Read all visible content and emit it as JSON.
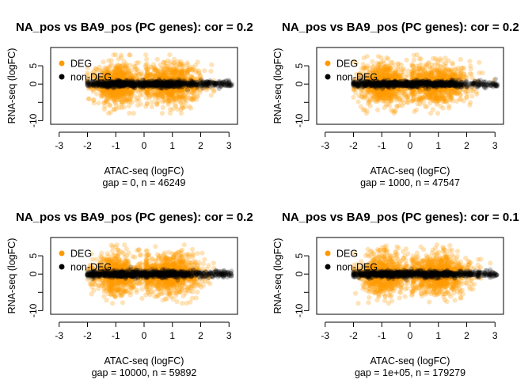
{
  "colors": {
    "deg": "#ff9900",
    "non_deg": "#000000",
    "frame": "#000000",
    "background": "#ffffff"
  },
  "legend": {
    "deg_label": "DEG",
    "non_deg_label": "non-DEG",
    "placement": "top-left"
  },
  "chart_data": [
    {
      "type": "scatter",
      "title": "NA_pos vs BA9_pos (PC genes): cor = 0.2",
      "xlabel": "ATAC-seq (logFC)",
      "ylabel": "RNA-seq (logFC)",
      "subtitle": "gap = 0, n = 46249",
      "xlim": [
        -3.3,
        3.3
      ],
      "ylim": [
        -11,
        10
      ],
      "xticks": [
        "-3",
        "-2",
        "-1",
        "0",
        "1",
        "2",
        "3"
      ],
      "yticks": [
        "-10",
        "",
        "0",
        "5"
      ],
      "series": [
        {
          "name": "DEG",
          "x_range": [
            -1.9,
            3.0
          ],
          "y_range": [
            -8,
            8
          ],
          "x_gap": [
            -0.05,
            0.05
          ]
        },
        {
          "name": "non-DEG",
          "x_range": [
            -2.0,
            3.1
          ],
          "y_range": [
            -1.5,
            1.5
          ]
        }
      ]
    },
    {
      "type": "scatter",
      "title": "NA_pos vs BA9_pos (PC genes): cor = 0.2",
      "xlabel": "ATAC-seq (logFC)",
      "ylabel": "RNA-seq (logFC)",
      "subtitle": "gap = 1000, n = 47547",
      "xlim": [
        -3.3,
        3.3
      ],
      "ylim": [
        -11,
        10
      ],
      "xticks": [
        "-3",
        "-2",
        "-1",
        "0",
        "1",
        "2",
        "3"
      ],
      "yticks": [
        "-10",
        "",
        "0",
        "5"
      ],
      "series": [
        {
          "name": "DEG",
          "x_range": [
            -1.9,
            3.0
          ],
          "y_range": [
            -8,
            8
          ],
          "x_gap": [
            -0.05,
            0.05
          ]
        },
        {
          "name": "non-DEG",
          "x_range": [
            -2.0,
            3.1
          ],
          "y_range": [
            -1.5,
            1.5
          ]
        }
      ]
    },
    {
      "type": "scatter",
      "title": "NA_pos vs BA9_pos (PC genes): cor = 0.2",
      "xlabel": "ATAC-seq (logFC)",
      "ylabel": "RNA-seq (logFC)",
      "subtitle": "gap = 10000, n = 59892",
      "xlim": [
        -3.3,
        3.3
      ],
      "ylim": [
        -11,
        10
      ],
      "xticks": [
        "-3",
        "-2",
        "-1",
        "0",
        "1",
        "2",
        "3"
      ],
      "yticks": [
        "-10",
        "",
        "0",
        "5"
      ],
      "series": [
        {
          "name": "DEG",
          "x_range": [
            -1.9,
            3.0
          ],
          "y_range": [
            -8,
            8
          ],
          "x_gap": [
            -0.05,
            0.05
          ]
        },
        {
          "name": "non-DEG",
          "x_range": [
            -2.0,
            3.1
          ],
          "y_range": [
            -1.5,
            1.5
          ]
        }
      ]
    },
    {
      "type": "scatter",
      "title": "NA_pos vs BA9_pos (PC genes): cor = 0.1",
      "xlabel": "ATAC-seq (logFC)",
      "ylabel": "RNA-seq (logFC)",
      "subtitle": "gap = 1e+05, n = 179279",
      "xlim": [
        -3.3,
        3.3
      ],
      "ylim": [
        -11,
        10
      ],
      "xticks": [
        "-3",
        "-2",
        "-1",
        "0",
        "1",
        "2",
        "3"
      ],
      "yticks": [
        "-10",
        "",
        "0",
        "5"
      ],
      "series": [
        {
          "name": "DEG",
          "x_range": [
            -1.9,
            3.0
          ],
          "y_range": [
            -8,
            8
          ],
          "x_gap": [
            -0.05,
            0.05
          ]
        },
        {
          "name": "non-DEG",
          "x_range": [
            -2.0,
            3.1
          ],
          "y_range": [
            -1.5,
            1.5
          ]
        }
      ]
    }
  ]
}
